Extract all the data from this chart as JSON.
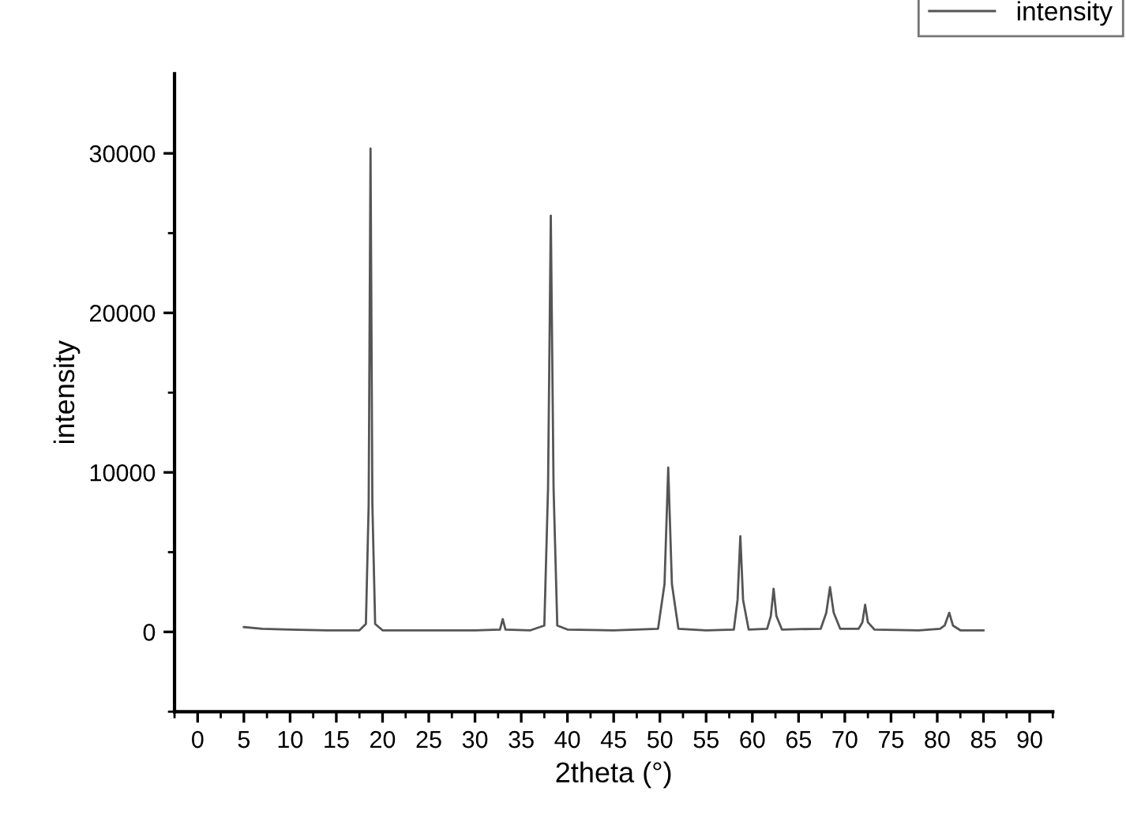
{
  "chart_data": {
    "type": "line",
    "xlabel": "2theta (°)",
    "ylabel": "intensity",
    "legend": "top right",
    "grid": false,
    "marker": "none",
    "line_style": "solid",
    "xlim": [
      -2.5,
      92.5
    ],
    "ylim": [
      -5000,
      35000
    ],
    "xticks": [
      0,
      5,
      10,
      15,
      20,
      25,
      30,
      35,
      40,
      45,
      50,
      55,
      60,
      65,
      70,
      75,
      80,
      85,
      90,
      {
        "value": -2.5,
        "label": null
      },
      {
        "value": 2.5,
        "label": null
      },
      {
        "value": 7.5,
        "label": null
      },
      {
        "value": 12.5,
        "label": null
      },
      {
        "value": 17.5,
        "label": null
      },
      {
        "value": 22.5,
        "label": null
      },
      {
        "value": 27.5,
        "label": null
      },
      {
        "value": 32.5,
        "label": null
      },
      {
        "value": 37.5,
        "label": null
      },
      {
        "value": 42.5,
        "label": null
      },
      {
        "value": 47.5,
        "label": null
      },
      {
        "value": 52.5,
        "label": null
      },
      {
        "value": 57.5,
        "label": null
      },
      {
        "value": 62.5,
        "label": null
      },
      {
        "value": 67.5,
        "label": null
      },
      {
        "value": 72.5,
        "label": null
      },
      {
        "value": 77.5,
        "label": null
      },
      {
        "value": 82.5,
        "label": null
      },
      {
        "value": 87.5,
        "label": null
      },
      {
        "value": 92.5,
        "label": null
      }
    ],
    "yticks": [
      0,
      10000,
      20000,
      30000,
      {
        "value": -5000,
        "label": null
      },
      {
        "value": 5000,
        "label": null
      },
      {
        "value": 15000,
        "label": null
      },
      {
        "value": 25000,
        "label": null
      }
    ],
    "series": [
      {
        "name": "intensity",
        "color": "#555555",
        "x": [
          5,
          7,
          10,
          14,
          17.5,
          18.2,
          18.5,
          18.7,
          18.9,
          19.2,
          20,
          25,
          30,
          32.7,
          33,
          33.3,
          36,
          37.5,
          37.9,
          38.2,
          38.5,
          38.9,
          40,
          45,
          49.8,
          50.5,
          50.9,
          51.3,
          52,
          55,
          58,
          58.4,
          58.7,
          59,
          59.6,
          61.6,
          62,
          62.3,
          62.6,
          63.2,
          67.4,
          68,
          68.4,
          68.8,
          69.5,
          71.5,
          71.9,
          72.2,
          72.5,
          73.2,
          78,
          80.3,
          80.8,
          81.3,
          81.7,
          82.5,
          85
        ],
        "values": [
          300,
          200,
          150,
          100,
          100,
          500,
          8000,
          30300,
          8000,
          500,
          100,
          100,
          100,
          150,
          800,
          150,
          100,
          400,
          9000,
          26100,
          9000,
          400,
          150,
          100,
          200,
          3000,
          10300,
          3000,
          200,
          100,
          150,
          2000,
          6000,
          2000,
          150,
          200,
          1000,
          2700,
          1000,
          150,
          200,
          1200,
          2800,
          1200,
          200,
          200,
          600,
          1700,
          600,
          150,
          100,
          200,
          400,
          1200,
          400,
          100,
          100
        ]
      }
    ]
  }
}
